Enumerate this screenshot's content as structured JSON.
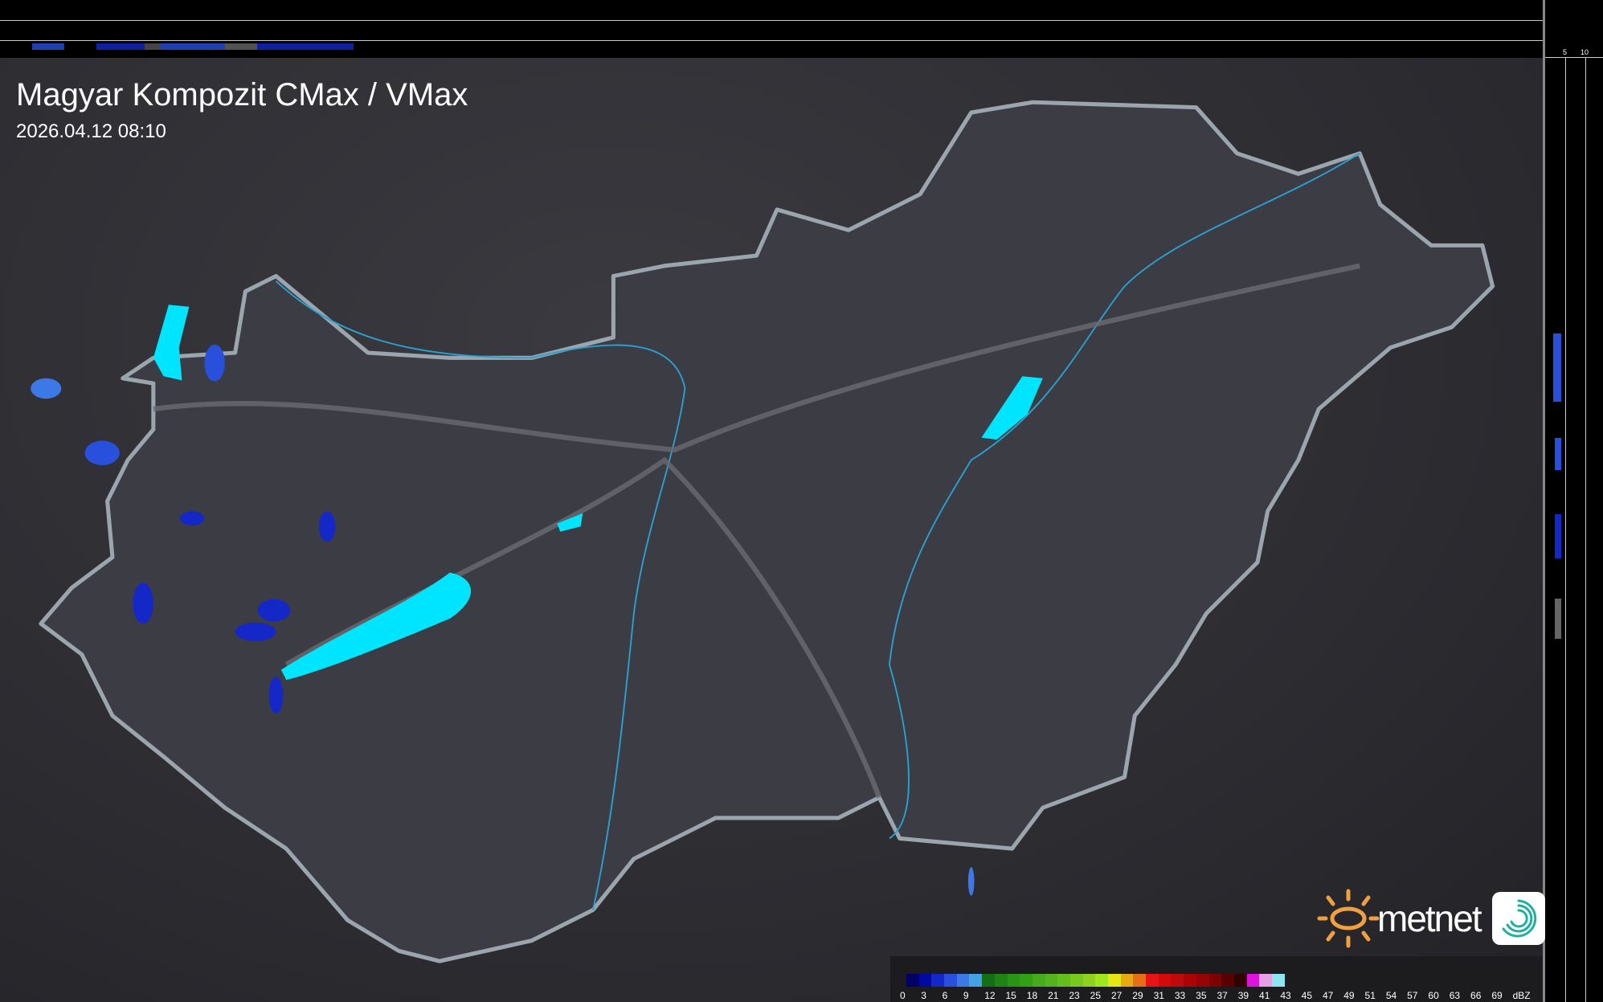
{
  "header": {
    "title": "Magyar Kompozit CMax / VMax",
    "timestamp": "2026.04.12 08:10"
  },
  "profile_axes": {
    "top_ticks": [
      "10",
      "5"
    ],
    "right_ticks": [
      "5",
      "10"
    ]
  },
  "legend": {
    "unit": "dBZ",
    "labels": [
      "0",
      "3",
      "6",
      "9",
      "12",
      "15",
      "18",
      "21",
      "23",
      "25",
      "27",
      "29",
      "31",
      "33",
      "35",
      "37",
      "39",
      "41",
      "43",
      "45",
      "47",
      "49",
      "51",
      "54",
      "57",
      "60",
      "63",
      "66",
      "69"
    ],
    "colors": [
      "#000066",
      "#000aa0",
      "#1428c8",
      "#2850dc",
      "#3c78e6",
      "#46a0e6",
      "#146e14",
      "#1e8214",
      "#289614",
      "#32a014",
      "#46aa1e",
      "#55b41e",
      "#64be1e",
      "#78c81e",
      "#8cd21e",
      "#a0e61e",
      "#e6e614",
      "#e6aa14",
      "#e66e14",
      "#e61414",
      "#d20a0a",
      "#be0a0a",
      "#aa0505",
      "#960505",
      "#7d0303",
      "#5a0000",
      "#320000",
      "#dc14dc",
      "#e6a0e6",
      "#8ce6f0"
    ]
  },
  "logo": {
    "brand": "metnet",
    "sun_color": "#f0a040",
    "icon_color": "#20b0a0"
  },
  "colors": {
    "border": "#9aa5ad",
    "rivers": "#2aa0d0",
    "lakes": "#00e5ff",
    "cities": "#ffffff",
    "country_fill": "#3c3c44"
  }
}
